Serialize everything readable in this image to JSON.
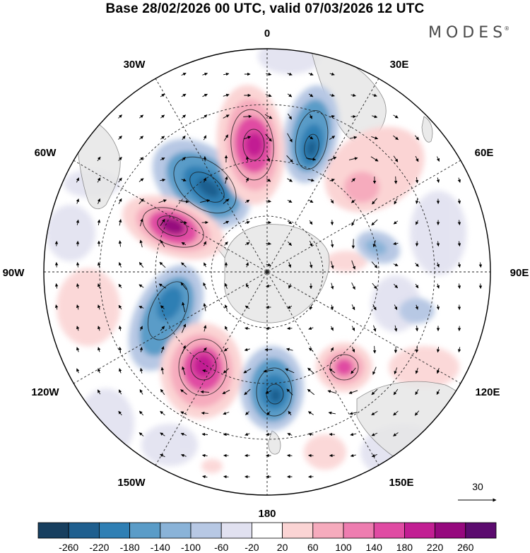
{
  "title": "Base 28/02/2026 00 UTC, valid 07/03/2026 12 UTC",
  "brand": {
    "name": "MODES",
    "mark": "®"
  },
  "longitude_labels": {
    "lon_0": "0",
    "lon_30e": "30E",
    "lon_60e": "60E",
    "lon_90e": "90E",
    "lon_120e": "120E",
    "lon_150e": "150E",
    "lon_180": "180",
    "lon_150w": "150W",
    "lon_120w": "120W",
    "lon_90w": "90W",
    "lon_60w": "60W",
    "lon_30w": "30W"
  },
  "vector_reference": {
    "label": "30"
  },
  "colorbar": {
    "labels": [
      "-260",
      "-220",
      "-180",
      "-140",
      "-100",
      "-60",
      "-20",
      "20",
      "60",
      "100",
      "140",
      "180",
      "220",
      "260"
    ],
    "colors": [
      "#173f5f",
      "#1f5f8f",
      "#2f7fb4",
      "#5a9cc8",
      "#8ab3d8",
      "#b7c8e4",
      "#e1e1f0",
      "#ffffff",
      "#fbd4d4",
      "#f6abbd",
      "#ee7db0",
      "#e04ba3",
      "#c21e93",
      "#96087e",
      "#5c0b6f"
    ]
  },
  "colors": {
    "land": "#e7e7e7",
    "coast": "#7a7a7a",
    "grid": "#222222"
  }
}
